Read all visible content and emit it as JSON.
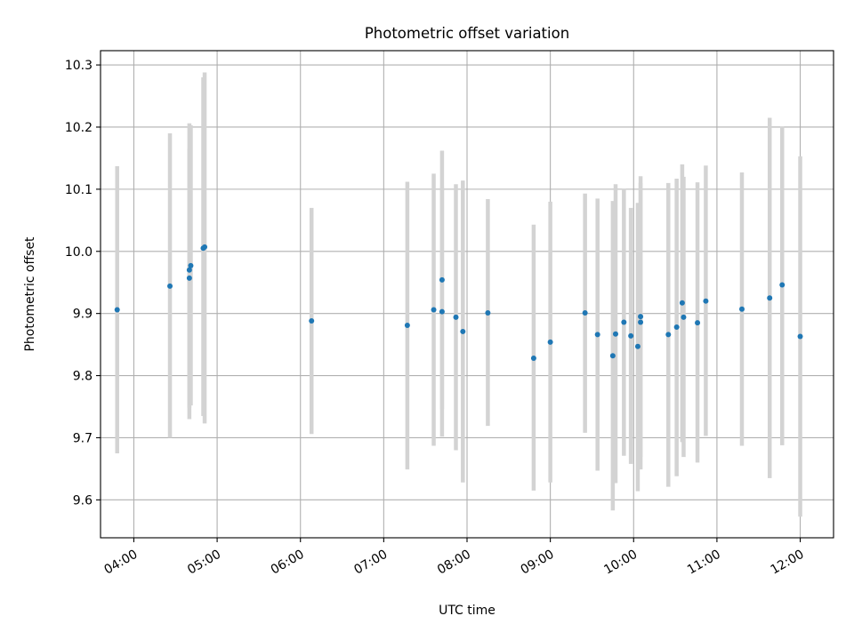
{
  "chart_data": {
    "type": "scatter",
    "title": "Photometric offset variation",
    "xlabel": "UTC time",
    "ylabel": "Photometric offset",
    "x_tick_labels": [
      "04:00",
      "05:00",
      "06:00",
      "07:00",
      "08:00",
      "09:00",
      "10:00",
      "11:00",
      "12:00"
    ],
    "y_tick_labels": [
      "9.6",
      "9.7",
      "9.8",
      "9.9",
      "10.0",
      "10.1",
      "10.2",
      "10.3"
    ],
    "xlim": [
      "03:36",
      "12:24"
    ],
    "ylim": [
      9.539,
      10.323
    ],
    "grid": true,
    "colors": {
      "points": "#1f77b4",
      "errorbars": "#d3d3d3",
      "grid": "#b0b0b0"
    },
    "series": [
      {
        "points": [
          {
            "t": "03:48",
            "y": 9.906,
            "lo": 9.675,
            "hi": 10.137
          },
          {
            "t": "04:26",
            "y": 9.944,
            "lo": 9.7,
            "hi": 10.19
          },
          {
            "t": "04:40",
            "y": 9.957,
            "lo": 9.748,
            "hi": 10.166
          },
          {
            "t": "04:40",
            "y": 9.97,
            "lo": 9.73,
            "hi": 10.206
          },
          {
            "t": "04:41",
            "y": 9.977,
            "lo": 9.752,
            "hi": 10.203
          },
          {
            "t": "04:50",
            "y": 10.005,
            "lo": 9.735,
            "hi": 10.28
          },
          {
            "t": "04:51",
            "y": 10.007,
            "lo": 9.723,
            "hi": 10.288
          },
          {
            "t": "06:08",
            "y": 9.888,
            "lo": 9.706,
            "hi": 10.07
          },
          {
            "t": "07:17",
            "y": 9.881,
            "lo": 9.649,
            "hi": 10.112
          },
          {
            "t": "07:36",
            "y": 9.906,
            "lo": 9.687,
            "hi": 10.125
          },
          {
            "t": "07:42",
            "y": 9.954,
            "lo": 9.746,
            "hi": 10.162
          },
          {
            "t": "07:42",
            "y": 9.903,
            "lo": 9.702,
            "hi": 10.104
          },
          {
            "t": "07:52",
            "y": 9.894,
            "lo": 9.68,
            "hi": 10.108
          },
          {
            "t": "07:57",
            "y": 9.871,
            "lo": 9.628,
            "hi": 10.114
          },
          {
            "t": "08:15",
            "y": 9.901,
            "lo": 9.719,
            "hi": 10.084
          },
          {
            "t": "08:48",
            "y": 9.828,
            "lo": 9.615,
            "hi": 10.043
          },
          {
            "t": "09:00",
            "y": 9.854,
            "lo": 9.628,
            "hi": 10.08
          },
          {
            "t": "09:25",
            "y": 9.901,
            "lo": 9.708,
            "hi": 10.093
          },
          {
            "t": "09:34",
            "y": 9.866,
            "lo": 9.647,
            "hi": 10.085
          },
          {
            "t": "09:45",
            "y": 9.832,
            "lo": 9.583,
            "hi": 10.081
          },
          {
            "t": "09:47",
            "y": 9.867,
            "lo": 9.627,
            "hi": 10.108
          },
          {
            "t": "09:53",
            "y": 9.886,
            "lo": 9.671,
            "hi": 10.101
          },
          {
            "t": "09:58",
            "y": 9.864,
            "lo": 9.658,
            "hi": 10.07
          },
          {
            "t": "10:03",
            "y": 9.847,
            "lo": 9.614,
            "hi": 10.078
          },
          {
            "t": "10:05",
            "y": 9.895,
            "lo": 9.669,
            "hi": 10.121
          },
          {
            "t": "10:05",
            "y": 9.886,
            "lo": 9.649,
            "hi": 10.11
          },
          {
            "t": "10:25",
            "y": 9.866,
            "lo": 9.621,
            "hi": 10.11
          },
          {
            "t": "10:31",
            "y": 9.878,
            "lo": 9.638,
            "hi": 10.117
          },
          {
            "t": "10:35",
            "y": 9.917,
            "lo": 9.693,
            "hi": 10.14
          },
          {
            "t": "10:36",
            "y": 9.894,
            "lo": 9.669,
            "hi": 10.12
          },
          {
            "t": "10:46",
            "y": 9.885,
            "lo": 9.66,
            "hi": 10.111
          },
          {
            "t": "10:52",
            "y": 9.92,
            "lo": 9.703,
            "hi": 10.138
          },
          {
            "t": "11:18",
            "y": 9.907,
            "lo": 9.687,
            "hi": 10.127
          },
          {
            "t": "11:38",
            "y": 9.925,
            "lo": 9.635,
            "hi": 10.215
          },
          {
            "t": "11:47",
            "y": 9.946,
            "lo": 9.688,
            "hi": 10.201
          },
          {
            "t": "12:00",
            "y": 9.863,
            "lo": 9.573,
            "hi": 10.153
          }
        ]
      }
    ]
  }
}
